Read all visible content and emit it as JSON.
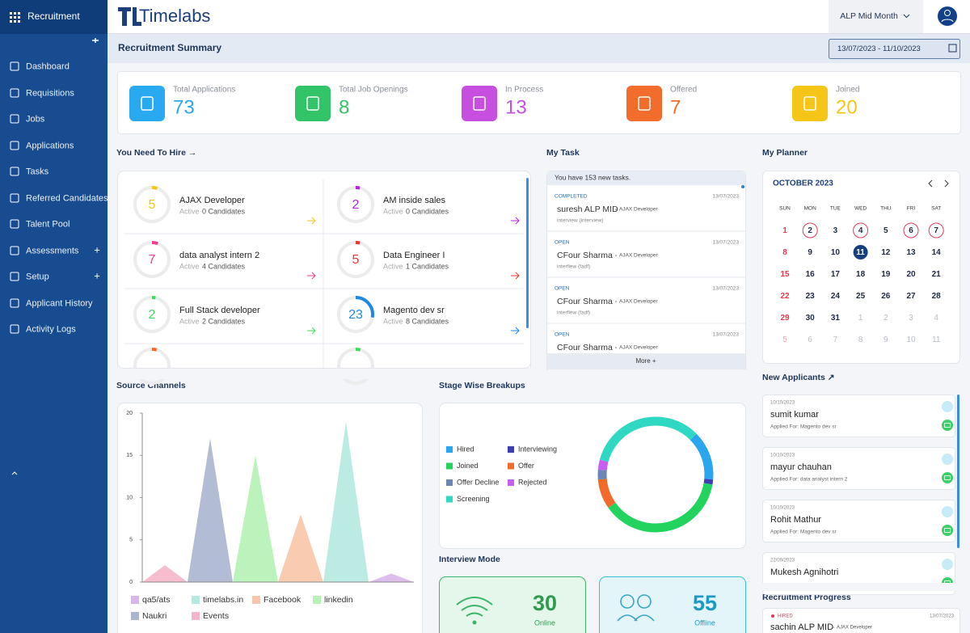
{
  "sidebar": {
    "title": "Recruitment",
    "nav": [
      {
        "label": "Dashboard"
      },
      {
        "label": "Requisitions"
      },
      {
        "label": "Jobs"
      },
      {
        "label": "Applications"
      },
      {
        "label": "Tasks"
      },
      {
        "label": "Referred Candidates"
      },
      {
        "label": "Talent Pool"
      },
      {
        "label": "Assessments",
        "toggle": "+"
      },
      {
        "label": "Setup",
        "toggle": "+"
      },
      {
        "label": "Applicant History"
      },
      {
        "label": "Activity Logs"
      }
    ]
  },
  "header": {
    "logo": "Timelabs",
    "period": "ALP Mid Month"
  },
  "summary": {
    "title": "Recruitment Summary",
    "date_range": "13/07/2023 - 11/10/2023",
    "stats": [
      {
        "label": "Total Applications",
        "value": 73,
        "color": "#29a9ef"
      },
      {
        "label": "Total Job Openings",
        "value": 8,
        "color": "#33c46a"
      },
      {
        "label": "In Process",
        "value": 13,
        "color": "#c64fe0"
      },
      {
        "label": "Offered",
        "value": 7,
        "color": "#f26d2b"
      },
      {
        "label": "Joined",
        "value": 20,
        "color": "#f5c518"
      }
    ]
  },
  "hire": {
    "title": "You Need To Hire →",
    "items": [
      {
        "count": 5,
        "name": "AJAX Developer",
        "status": "Active",
        "candidates": "0 Candidates",
        "color": "#f5c518"
      },
      {
        "count": 2,
        "name": "AM inside sales",
        "status": "Active",
        "candidates": "0 Candidates",
        "color": "#b026d9"
      },
      {
        "count": 7,
        "name": "data analyst intern 2",
        "status": "Active",
        "candidates": "4 Candidates",
        "color": "#f03c8c"
      },
      {
        "count": 5,
        "name": "Data Engineer I",
        "status": "Active",
        "candidates": "1 Candidates",
        "color": "#e53935"
      },
      {
        "count": 2,
        "name": "Full Stack developer",
        "status": "Active",
        "candidates": "2 Candidates",
        "color": "#3ddc5a"
      },
      {
        "count": 23,
        "name": "Magento dev sr",
        "status": "Active",
        "candidates": "8 Candidates",
        "color": "#1e88e5"
      }
    ]
  },
  "task": {
    "title": "My Task",
    "summary": "You have 153 new tasks.",
    "more": "More +",
    "items": [
      {
        "status": "COMPLETED",
        "date": "13/07/2023",
        "name": "suresh ALP MID",
        "role": "AJAX Developer",
        "type": "interview (interview)"
      },
      {
        "status": "OPEN",
        "date": "13/07/2023",
        "name": "CFour Sharma",
        "role": "AJAX Developer",
        "type": "interfiew (fadf)"
      },
      {
        "status": "OPEN",
        "date": "13/07/2023",
        "name": "CFour Sharma",
        "role": "AJAX Developer",
        "type": "interfiew (fadf)"
      },
      {
        "status": "OPEN",
        "date": "13/07/2023",
        "name": "CFour Sharma",
        "role": "AJAX Developer",
        "type": ""
      }
    ]
  },
  "planner": {
    "title": "My Planner",
    "month": "OCTOBER 2023",
    "weekdays": [
      "SUN",
      "MON",
      "TUE",
      "WED",
      "THU",
      "FRI",
      "SAT"
    ],
    "weeks": [
      [
        1,
        2,
        3,
        4,
        5,
        6,
        7
      ],
      [
        8,
        9,
        10,
        11,
        12,
        13,
        14
      ],
      [
        15,
        16,
        17,
        18,
        19,
        20,
        21
      ],
      [
        22,
        23,
        24,
        25,
        26,
        27,
        28
      ],
      [
        29,
        30,
        31,
        1,
        2,
        3,
        4
      ],
      [
        5,
        6,
        7,
        8,
        9,
        10,
        11
      ]
    ]
  },
  "chart_data": [
    {
      "type": "area",
      "title": "Source Channels",
      "categories": [
        null,
        null,
        null,
        null,
        null,
        null,
        null,
        null,
        null,
        null,
        null,
        null,
        null
      ],
      "ylim": [
        0,
        20
      ],
      "yticks": [
        0,
        5,
        10,
        15,
        20
      ],
      "series": [
        {
          "name": "qa5/ats",
          "color": "#d9b6ea",
          "values": [
            0,
            0,
            0,
            0,
            0,
            0,
            0,
            0,
            0,
            0,
            0,
            1,
            0
          ]
        },
        {
          "name": "timelabs.in",
          "color": "#b4e9e0",
          "values": [
            0,
            0,
            0,
            0,
            0,
            0,
            0,
            0,
            0,
            19,
            0,
            0,
            0
          ]
        },
        {
          "name": "Facebook",
          "color": "#f8c5a8",
          "values": [
            0,
            0,
            0,
            0,
            0,
            0,
            0,
            8,
            0,
            0,
            0,
            0,
            0
          ]
        },
        {
          "name": "linkedin",
          "color": "#b5f2b5",
          "values": [
            0,
            0,
            0,
            0,
            0,
            15,
            0,
            0,
            0,
            0,
            0,
            0,
            0
          ]
        },
        {
          "name": "Naukri",
          "color": "#aab5d0",
          "values": [
            0,
            0,
            0,
            17,
            0,
            0,
            0,
            0,
            0,
            0,
            0,
            0,
            0
          ]
        },
        {
          "name": "Events",
          "color": "#f5b6c9",
          "values": [
            0,
            2,
            0,
            0,
            0,
            0,
            0,
            0,
            0,
            0,
            0,
            0,
            0
          ]
        }
      ]
    },
    {
      "type": "donut",
      "title": "Stage Wise Breakups",
      "categories": [
        "Hired",
        "Interviewing",
        "Joined",
        "Offer",
        "Offer Decline",
        "Rejected",
        "Screening"
      ],
      "values": [
        10,
        1,
        27,
        6,
        2,
        2,
        24
      ],
      "colors": [
        "#2aa6ef",
        "#3d3db5",
        "#22d35e",
        "#f26b2a",
        "#6b85b5",
        "#c85ef0",
        "#2ed8c3"
      ]
    }
  ],
  "interview_mode": {
    "title": "Interview Mode",
    "items": [
      {
        "value": 30,
        "label": "Online"
      },
      {
        "value": 55,
        "label": "Offline"
      }
    ]
  },
  "new_applicants": {
    "title": "New Applicants ↗",
    "items": [
      {
        "date": "10/10/2023",
        "name": "sumit kumar",
        "applied": "Applied For: Magento dev sr"
      },
      {
        "date": "10/10/2023",
        "name": "mayur chauhan",
        "applied": "Applied For: data analyst intern 2"
      },
      {
        "date": "10/10/2023",
        "name": "Rohit Mathur",
        "applied": "Applied For: Magento dev sr"
      },
      {
        "date": "22/09/2023",
        "name": "Mukesh Agnihotri",
        "applied": ""
      }
    ]
  },
  "recruitment_progress": {
    "title": "Recruitment Progress",
    "items": [
      {
        "status": "HIRED",
        "date": "13/07/2023",
        "name": "sachin ALP MID",
        "role": "AJAX Developer"
      }
    ]
  }
}
